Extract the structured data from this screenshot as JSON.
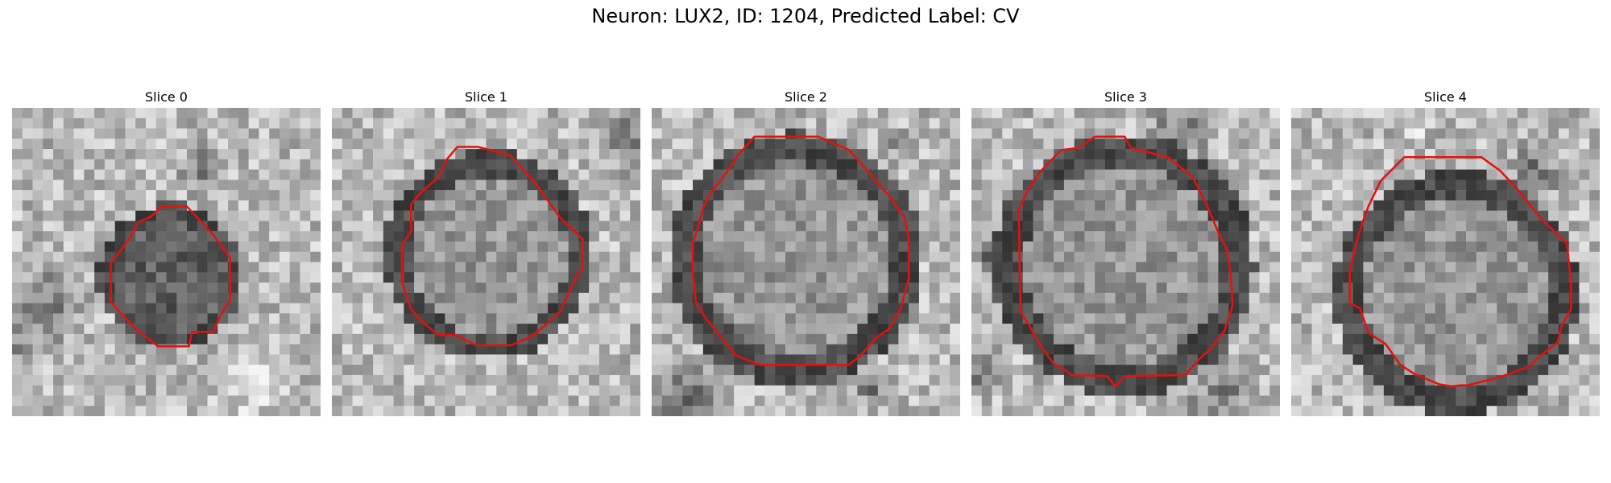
{
  "figure": {
    "title": "Neuron: LUX2, ID: 1204, Predicted Label: CV",
    "contour_color": "#e3120b",
    "colormap": "grayscale"
  },
  "slices": [
    {
      "title": "Slice 0"
    },
    {
      "title": "Slice 1"
    },
    {
      "title": "Slice 2"
    },
    {
      "title": "Slice 3"
    },
    {
      "title": "Slice 4"
    }
  ]
}
